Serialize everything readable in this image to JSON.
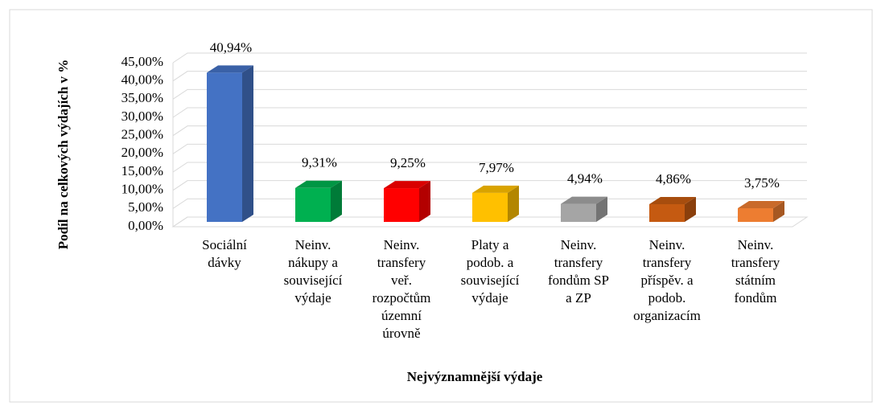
{
  "chart_data": {
    "type": "bar3d",
    "x_label": "Nejvýznamnější výdaje",
    "y_label": "Podíl na celkových výdajích v %",
    "categories": [
      [
        "Sociální",
        "dávky"
      ],
      [
        "Neinv.",
        "nákupy a",
        "související",
        "výdaje"
      ],
      [
        "Neinv.",
        "transfery",
        "veř.",
        "rozpočtům",
        "územní",
        "úrovně"
      ],
      [
        "Platy a",
        "podob. a",
        "související",
        "výdaje"
      ],
      [
        "Neinv.",
        "transfery",
        "fondům SP",
        "a ZP"
      ],
      [
        "Neinv.",
        "transfery",
        "příspěv. a",
        "podob.",
        "organizacím"
      ],
      [
        "Neinv.",
        "transfery",
        "státním",
        "fondům"
      ]
    ],
    "values": [
      40.94,
      9.31,
      9.25,
      7.97,
      4.94,
      4.86,
      3.75
    ],
    "value_labels": [
      "40,94%",
      "9,31%",
      "9,25%",
      "7,97%",
      "4,94%",
      "4,86%",
      "3,75%"
    ],
    "colors": [
      "#4472c4",
      "#00b050",
      "#ff0000",
      "#ffc000",
      "#a5a5a5",
      "#c55a11",
      "#ed7d31"
    ],
    "ylim": [
      0,
      45
    ],
    "yticks": [
      {
        "value": 0,
        "label": "0,00%"
      },
      {
        "value": 5,
        "label": "5,00%"
      },
      {
        "value": 10,
        "label": "10,00%"
      },
      {
        "value": 15,
        "label": "15,00%"
      },
      {
        "value": 20,
        "label": "20,00%"
      },
      {
        "value": 25,
        "label": "25,00%"
      },
      {
        "value": 30,
        "label": "30,00%"
      },
      {
        "value": 35,
        "label": "35,00%"
      },
      {
        "value": 40,
        "label": "40,00%"
      },
      {
        "value": 45,
        "label": "45,00%"
      }
    ],
    "grid": true
  }
}
